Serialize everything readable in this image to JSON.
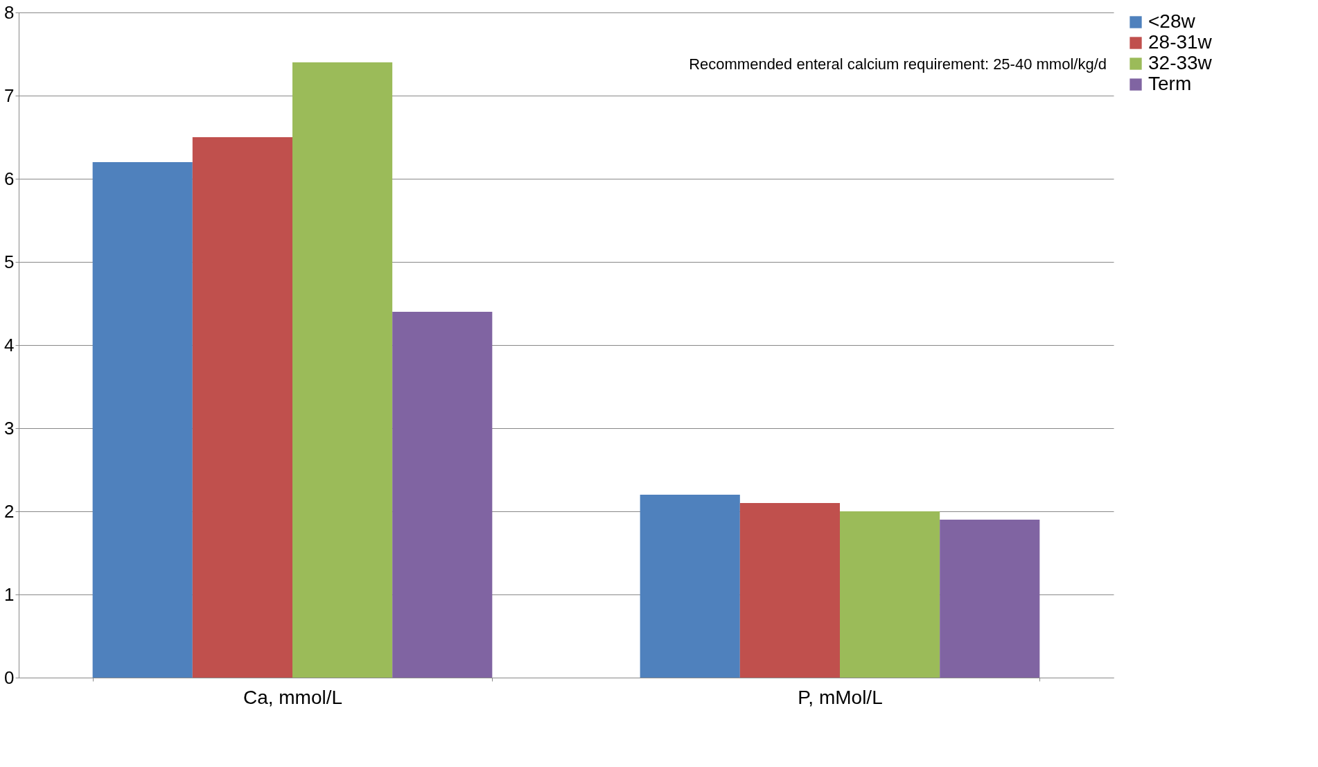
{
  "chart_data": {
    "type": "bar",
    "categories": [
      "Ca, mmol/L",
      "P, mMol/L"
    ],
    "series": [
      {
        "name": "<28w",
        "color": "#4f81bd",
        "values": [
          6.2,
          2.2
        ]
      },
      {
        "name": "28-31w",
        "color": "#c0504d",
        "values": [
          6.5,
          2.1
        ]
      },
      {
        "name": "32-33w",
        "color": "#9bbb59",
        "values": [
          7.4,
          2.0
        ]
      },
      {
        "name": "Term",
        "color": "#8064a2",
        "values": [
          4.4,
          1.9
        ]
      }
    ],
    "ylim": [
      0,
      8
    ],
    "yticks": [
      0,
      1,
      2,
      3,
      4,
      5,
      6,
      7,
      8
    ],
    "grid": "y",
    "legend": "right",
    "annotations": [
      "Recommended enteral calcium requirement: 25-40 mmol/kg/d"
    ]
  }
}
